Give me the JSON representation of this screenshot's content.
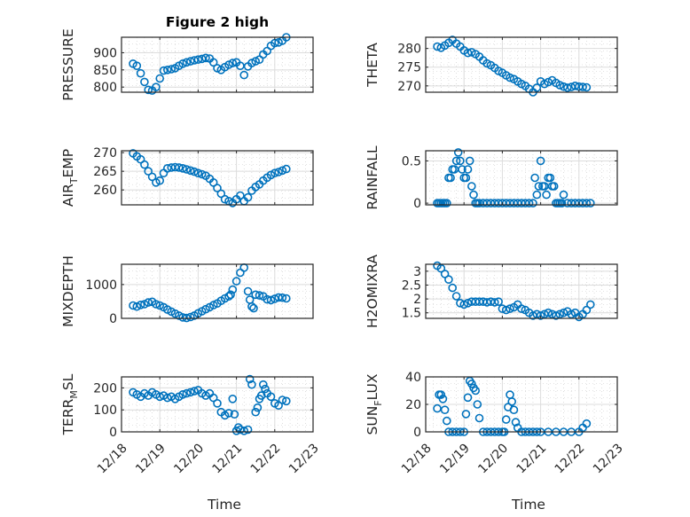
{
  "figure_title": "Figure 2 high",
  "chart_data": [
    {
      "type": "scatter",
      "title": "Figure 2 high",
      "ylabel": "PRESSURE",
      "ylabel_sub": null,
      "xlabel": "",
      "ylim": [
        785,
        945
      ],
      "yticks": [
        800,
        850,
        900
      ],
      "xlim": [
        0,
        5
      ],
      "xtick_labels": [
        "12/18",
        "12/19",
        "12/20",
        "12/21",
        "12/22",
        "12/23"
      ],
      "show_xtick_labels": false,
      "grid": true,
      "minor_grid": true,
      "marker": "o",
      "color": "#0072BD",
      "x": [
        0.3,
        0.4,
        0.5,
        0.6,
        0.7,
        0.8,
        0.9,
        1.0,
        1.1,
        1.2,
        1.3,
        1.4,
        1.5,
        1.6,
        1.7,
        1.8,
        1.9,
        2.0,
        2.1,
        2.2,
        2.3,
        2.4,
        2.5,
        2.6,
        2.7,
        2.8,
        2.9,
        3.0,
        3.1,
        3.2,
        3.3,
        3.4,
        3.5,
        3.6,
        3.7,
        3.8,
        3.9,
        4.0,
        4.1,
        4.2,
        4.3
      ],
      "y": [
        868,
        862,
        840,
        815,
        792,
        790,
        800,
        825,
        848,
        850,
        852,
        855,
        862,
        868,
        872,
        875,
        878,
        880,
        882,
        885,
        883,
        872,
        855,
        850,
        858,
        865,
        870,
        872,
        862,
        835,
        860,
        870,
        875,
        880,
        895,
        905,
        920,
        928,
        930,
        935,
        945
      ]
    },
    {
      "type": "scatter",
      "ylabel": "THETA",
      "ylabel_sub": null,
      "xlabel": "",
      "ylim": [
        268.3,
        283
      ],
      "yticks": [
        270,
        275,
        280
      ],
      "xlim": [
        0,
        5
      ],
      "xtick_labels": [
        "12/18",
        "12/19",
        "12/20",
        "12/21",
        "12/22",
        "12/23"
      ],
      "show_xtick_labels": false,
      "grid": true,
      "minor_grid": true,
      "marker": "o",
      "color": "#0072BD",
      "x": [
        0.3,
        0.4,
        0.5,
        0.6,
        0.7,
        0.8,
        0.9,
        1.0,
        1.1,
        1.2,
        1.3,
        1.4,
        1.5,
        1.6,
        1.7,
        1.8,
        1.9,
        2.0,
        2.1,
        2.2,
        2.3,
        2.4,
        2.5,
        2.6,
        2.7,
        2.8,
        2.9,
        3.0,
        3.1,
        3.2,
        3.3,
        3.4,
        3.5,
        3.6,
        3.7,
        3.8,
        3.9,
        4.0,
        4.1,
        4.2
      ],
      "y": [
        280.5,
        280.2,
        280.8,
        281.5,
        282.3,
        281.3,
        280.5,
        279.5,
        278.8,
        279.0,
        278.5,
        277.8,
        276.8,
        276.0,
        275.5,
        274.8,
        274.0,
        273.5,
        272.8,
        272.2,
        271.8,
        271.2,
        270.5,
        270.0,
        269.2,
        268.3,
        269.5,
        271.2,
        270.5,
        271.0,
        271.5,
        270.8,
        270.2,
        269.8,
        269.5,
        269.7,
        270.0,
        269.8,
        269.7,
        269.6
      ]
    },
    {
      "type": "scatter",
      "ylabel": "AIR",
      "ylabel_sub": "T",
      "ylabel_rest": "EMP",
      "xlabel": "",
      "ylim": [
        256,
        270.5
      ],
      "yticks": [
        260,
        265,
        270
      ],
      "xlim": [
        0,
        5
      ],
      "xtick_labels": [
        "12/18",
        "12/19",
        "12/20",
        "12/21",
        "12/22",
        "12/23"
      ],
      "show_xtick_labels": false,
      "grid": true,
      "minor_grid": true,
      "marker": "o",
      "color": "#0072BD",
      "x": [
        0.3,
        0.4,
        0.5,
        0.6,
        0.7,
        0.8,
        0.9,
        1.0,
        1.1,
        1.2,
        1.3,
        1.4,
        1.5,
        1.6,
        1.7,
        1.8,
        1.9,
        2.0,
        2.1,
        2.2,
        2.3,
        2.4,
        2.5,
        2.6,
        2.7,
        2.8,
        2.9,
        3.0,
        3.1,
        3.2,
        3.3,
        3.4,
        3.5,
        3.6,
        3.7,
        3.8,
        3.9,
        4.0,
        4.1,
        4.2,
        4.3
      ],
      "y": [
        269.8,
        269.0,
        268.2,
        266.8,
        265.0,
        263.5,
        262.0,
        262.5,
        264.5,
        265.8,
        266.0,
        266.1,
        266.0,
        265.8,
        265.5,
        265.2,
        264.9,
        264.5,
        264.2,
        263.8,
        263.0,
        262.0,
        260.5,
        259.0,
        257.5,
        257.0,
        256.5,
        257.5,
        258.5,
        257.0,
        258.0,
        259.8,
        260.8,
        261.5,
        262.5,
        263.3,
        264.0,
        264.5,
        264.8,
        265.2,
        265.6
      ]
    },
    {
      "type": "scatter",
      "ylabel": "RAINFALL",
      "ylabel_sub": null,
      "xlabel": "",
      "ylim": [
        -0.02,
        0.62
      ],
      "yticks": [
        0,
        0.5
      ],
      "ytick_labels": [
        "0",
        "0.5"
      ],
      "xlim": [
        0,
        5
      ],
      "xtick_labels": [
        "12/18",
        "12/19",
        "12/20",
        "12/21",
        "12/22",
        "12/23"
      ],
      "show_xtick_labels": false,
      "grid": true,
      "minor_grid": true,
      "marker": "o",
      "color": "#0072BD",
      "x": [
        0.3,
        0.35,
        0.4,
        0.45,
        0.5,
        0.55,
        0.6,
        0.65,
        0.7,
        0.75,
        0.8,
        0.85,
        0.9,
        0.95,
        1.0,
        1.05,
        1.1,
        1.15,
        1.2,
        1.25,
        1.3,
        1.35,
        1.4,
        1.5,
        1.6,
        1.7,
        1.8,
        1.9,
        2.0,
        2.1,
        2.2,
        2.3,
        2.4,
        2.5,
        2.6,
        2.7,
        2.8,
        2.85,
        2.9,
        2.95,
        3.0,
        3.05,
        3.1,
        3.15,
        3.2,
        3.25,
        3.3,
        3.35,
        3.4,
        3.45,
        3.5,
        3.55,
        3.6,
        3.7,
        3.8,
        3.9,
        4.0,
        4.1,
        4.2,
        4.3
      ],
      "y": [
        0,
        0,
        0,
        0,
        0,
        0,
        0.3,
        0.3,
        0.4,
        0.4,
        0.5,
        0.6,
        0.5,
        0.4,
        0.3,
        0.3,
        0.4,
        0.5,
        0.2,
        0.1,
        0,
        0,
        0,
        0,
        0,
        0,
        0,
        0,
        0,
        0,
        0,
        0,
        0,
        0,
        0,
        0,
        0,
        0.3,
        0.1,
        0.2,
        0.5,
        0.2,
        0.2,
        0.1,
        0.3,
        0.3,
        0.2,
        0.2,
        0,
        0,
        0,
        0,
        0.1,
        0,
        0,
        0,
        0,
        0,
        0,
        0
      ]
    },
    {
      "type": "scatter",
      "ylabel": "MIXDEPTH",
      "ylabel_sub": null,
      "xlabel": "",
      "ylim": [
        0,
        1600
      ],
      "yticks": [
        0,
        1000
      ],
      "xlim": [
        0,
        5
      ],
      "xtick_labels": [
        "12/18",
        "12/19",
        "12/20",
        "12/21",
        "12/22",
        "12/23"
      ],
      "show_xtick_labels": false,
      "grid": true,
      "minor_grid": true,
      "marker": "o",
      "color": "#0072BD",
      "x": [
        0.3,
        0.4,
        0.5,
        0.6,
        0.7,
        0.8,
        0.9,
        1.0,
        1.1,
        1.2,
        1.3,
        1.4,
        1.5,
        1.6,
        1.7,
        1.8,
        1.9,
        2.0,
        2.1,
        2.2,
        2.3,
        2.4,
        2.5,
        2.6,
        2.7,
        2.8,
        2.85,
        2.9,
        3.0,
        3.1,
        3.2,
        3.3,
        3.35,
        3.4,
        3.45,
        3.5,
        3.6,
        3.7,
        3.8,
        3.9,
        4.0,
        4.1,
        4.2,
        4.3
      ],
      "y": [
        380,
        350,
        400,
        420,
        470,
        490,
        420,
        380,
        330,
        260,
        200,
        140,
        80,
        30,
        10,
        40,
        80,
        150,
        210,
        270,
        330,
        390,
        440,
        520,
        590,
        650,
        700,
        850,
        1100,
        1350,
        1500,
        800,
        550,
        350,
        300,
        700,
        680,
        650,
        560,
        540,
        580,
        620,
        610,
        590
      ]
    },
    {
      "type": "scatter",
      "ylabel": "H2OMIXRA",
      "ylabel_sub": null,
      "xlabel": "",
      "ylim": [
        1.3,
        3.25
      ],
      "yticks": [
        1.5,
        2,
        2.5,
        3
      ],
      "ytick_labels": [
        "1.5",
        "2",
        "2.5",
        "3"
      ],
      "xlim": [
        0,
        5
      ],
      "xtick_labels": [
        "12/18",
        "12/19",
        "12/20",
        "12/21",
        "12/22",
        "12/23"
      ],
      "show_xtick_labels": false,
      "grid": true,
      "minor_grid": true,
      "marker": "o",
      "color": "#0072BD",
      "x": [
        0.3,
        0.4,
        0.5,
        0.6,
        0.7,
        0.8,
        0.9,
        1.0,
        1.1,
        1.2,
        1.3,
        1.4,
        1.5,
        1.6,
        1.7,
        1.8,
        1.9,
        2.0,
        2.1,
        2.2,
        2.3,
        2.4,
        2.5,
        2.6,
        2.7,
        2.8,
        2.9,
        3.0,
        3.1,
        3.2,
        3.3,
        3.4,
        3.5,
        3.6,
        3.7,
        3.8,
        3.9,
        4.0,
        4.1,
        4.2,
        4.3
      ],
      "y": [
        3.2,
        3.1,
        2.9,
        2.7,
        2.4,
        2.1,
        1.85,
        1.8,
        1.85,
        1.9,
        1.9,
        1.9,
        1.9,
        1.88,
        1.9,
        1.88,
        1.9,
        1.65,
        1.6,
        1.65,
        1.7,
        1.8,
        1.65,
        1.6,
        1.5,
        1.4,
        1.45,
        1.4,
        1.45,
        1.5,
        1.45,
        1.4,
        1.45,
        1.5,
        1.55,
        1.45,
        1.5,
        1.35,
        1.45,
        1.6,
        1.8
      ]
    },
    {
      "type": "scatter",
      "ylabel": "TERR",
      "ylabel_sub": "M",
      "ylabel_rest": "SL",
      "xlabel": "Time",
      "ylim": [
        0,
        250
      ],
      "yticks": [
        0,
        100,
        200
      ],
      "xlim": [
        0,
        5
      ],
      "xtick_labels": [
        "12/18",
        "12/19",
        "12/20",
        "12/21",
        "12/22",
        "12/23"
      ],
      "show_xtick_labels": true,
      "grid": true,
      "minor_grid": true,
      "marker": "o",
      "color": "#0072BD",
      "x": [
        0.3,
        0.4,
        0.5,
        0.6,
        0.7,
        0.8,
        0.9,
        1.0,
        1.1,
        1.2,
        1.3,
        1.4,
        1.5,
        1.6,
        1.7,
        1.8,
        1.9,
        2.0,
        2.1,
        2.2,
        2.3,
        2.4,
        2.5,
        2.6,
        2.7,
        2.8,
        2.9,
        2.95,
        3.0,
        3.05,
        3.1,
        3.2,
        3.3,
        3.35,
        3.4,
        3.5,
        3.55,
        3.6,
        3.65,
        3.7,
        3.75,
        3.8,
        3.9,
        4.0,
        4.1,
        4.2,
        4.3
      ],
      "y": [
        180,
        170,
        160,
        175,
        165,
        180,
        170,
        160,
        165,
        155,
        160,
        150,
        160,
        170,
        175,
        180,
        185,
        190,
        175,
        165,
        175,
        155,
        130,
        90,
        75,
        85,
        150,
        80,
        5,
        20,
        10,
        5,
        10,
        240,
        215,
        90,
        110,
        150,
        165,
        215,
        195,
        175,
        160,
        130,
        120,
        145,
        140
      ]
    },
    {
      "type": "scatter",
      "ylabel": "SUN",
      "ylabel_sub": "F",
      "ylabel_rest": "LUX",
      "xlabel": "Time",
      "ylim": [
        0,
        40
      ],
      "yticks": [
        0,
        20,
        40
      ],
      "xlim": [
        0,
        5
      ],
      "xtick_labels": [
        "12/18",
        "12/19",
        "12/20",
        "12/21",
        "12/22",
        "12/23"
      ],
      "show_xtick_labels": true,
      "grid": true,
      "minor_grid": true,
      "marker": "o",
      "color": "#0072BD",
      "x": [
        0.3,
        0.35,
        0.4,
        0.45,
        0.5,
        0.55,
        0.6,
        0.7,
        0.8,
        0.9,
        1.0,
        1.05,
        1.1,
        1.15,
        1.2,
        1.25,
        1.3,
        1.35,
        1.4,
        1.5,
        1.6,
        1.7,
        1.8,
        1.9,
        2.0,
        2.05,
        2.1,
        2.15,
        2.2,
        2.25,
        2.3,
        2.35,
        2.4,
        2.5,
        2.6,
        2.7,
        2.8,
        2.9,
        3.0,
        3.2,
        3.4,
        3.6,
        3.8,
        4.0,
        4.1,
        4.2
      ],
      "y": [
        17,
        27,
        27,
        24,
        16,
        8,
        0,
        0,
        0,
        0,
        0,
        13,
        25,
        37,
        35,
        32,
        30,
        20,
        10,
        0,
        0,
        0,
        0,
        0,
        0,
        0,
        9,
        18,
        27,
        22,
        16,
        7,
        3,
        0,
        0,
        0,
        0,
        0,
        0,
        0,
        0,
        0,
        0,
        0,
        3,
        6
      ]
    }
  ]
}
